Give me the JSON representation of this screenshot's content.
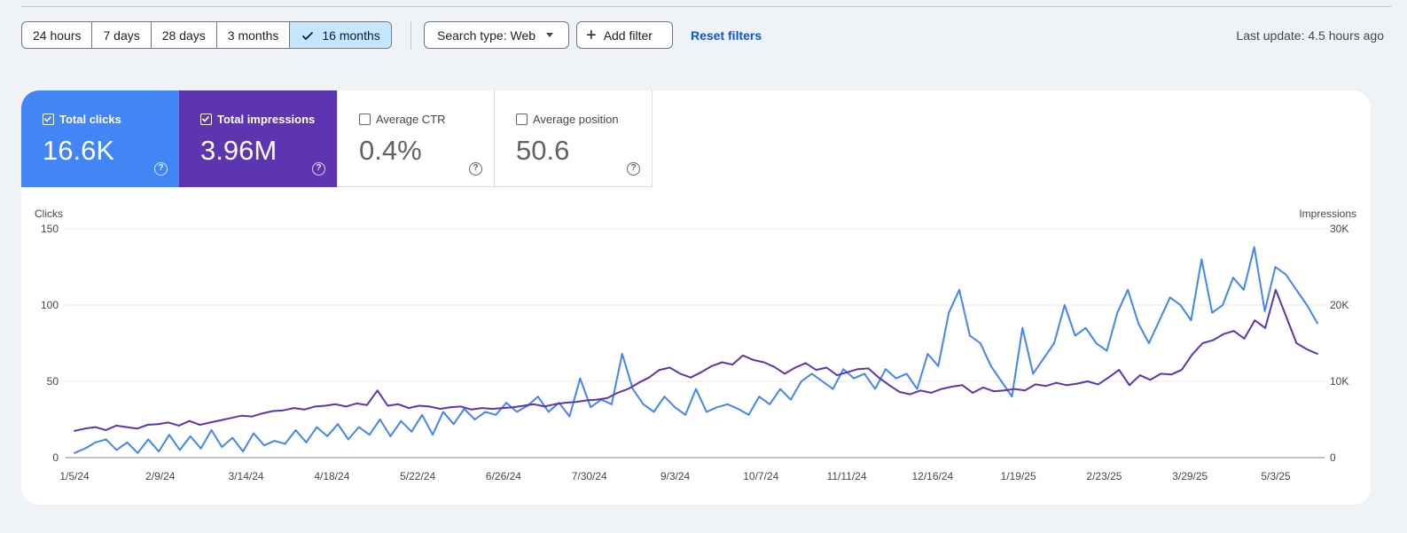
{
  "toolbar": {
    "ranges": [
      "24 hours",
      "7 days",
      "28 days",
      "3 months",
      "16 months"
    ],
    "selected_range": "16 months",
    "search_type_label": "Search type: Web",
    "add_filter_label": "Add filter",
    "reset_label": "Reset filters",
    "last_update": "Last update: 4.5 hours ago"
  },
  "metrics": [
    {
      "label": "Total clicks",
      "value": "16.6K",
      "checked": true,
      "color": "#4285f4"
    },
    {
      "label": "Total impressions",
      "value": "3.96M",
      "checked": true,
      "color": "#5e35b1"
    },
    {
      "label": "Average CTR",
      "value": "0.4%",
      "checked": false
    },
    {
      "label": "Average position",
      "value": "50.6",
      "checked": false
    }
  ],
  "help_glyph": "?",
  "chart_data": {
    "type": "line",
    "left_axis": {
      "label": "Clicks",
      "range": [
        0,
        150
      ],
      "ticks": [
        "0",
        "50",
        "100",
        "150"
      ]
    },
    "right_axis": {
      "label": "Impressions",
      "range": [
        0,
        30000
      ],
      "ticks": [
        "0",
        "10K",
        "20K",
        "30K"
      ]
    },
    "x_ticks": [
      "1/5/24",
      "2/9/24",
      "3/14/24",
      "4/18/24",
      "5/22/24",
      "6/26/24",
      "7/30/24",
      "9/3/24",
      "10/7/24",
      "11/11/24",
      "12/16/24",
      "1/19/25",
      "2/23/25",
      "3/29/25",
      "5/3/25"
    ],
    "grid": true,
    "legend": "none",
    "series": [
      {
        "name": "Clicks",
        "axis": "left",
        "color": "#4285f4",
        "values": [
          3,
          6,
          10,
          12,
          5,
          10,
          3,
          12,
          4,
          15,
          5,
          14,
          6,
          18,
          7,
          13,
          4,
          16,
          8,
          11,
          9,
          18,
          10,
          20,
          14,
          22,
          12,
          20,
          15,
          25,
          14,
          24,
          17,
          28,
          15,
          30,
          22,
          32,
          25,
          30,
          28,
          36,
          30,
          34,
          40,
          30,
          36,
          27,
          52,
          33,
          38,
          35,
          68,
          45,
          35,
          30,
          40,
          33,
          28,
          45,
          30,
          33,
          35,
          32,
          28,
          40,
          35,
          45,
          38,
          50,
          55,
          50,
          45,
          58,
          52,
          55,
          45,
          58,
          52,
          55,
          45,
          68,
          60,
          95,
          110,
          80,
          75,
          60,
          50,
          40,
          85,
          55,
          65,
          75,
          100,
          80,
          85,
          75,
          70,
          95,
          110,
          88,
          75,
          90,
          105,
          100,
          90,
          130,
          95,
          100,
          118,
          110,
          138,
          96,
          125,
          120,
          110,
          100,
          88
        ]
      },
      {
        "name": "Impressions",
        "axis": "right",
        "color": "#5e35b1",
        "values": [
          3500,
          3800,
          4000,
          3600,
          4200,
          4000,
          3800,
          4300,
          4400,
          4600,
          4200,
          4800,
          4300,
          4600,
          4900,
          5200,
          5500,
          5400,
          5800,
          6100,
          6200,
          6500,
          6300,
          6700,
          6800,
          7000,
          6700,
          7100,
          6900,
          8800,
          6800,
          7000,
          6500,
          6800,
          6700,
          6400,
          6600,
          6700,
          6300,
          6500,
          6400,
          6500,
          6600,
          6800,
          7000,
          6700,
          7000,
          7200,
          7300,
          7500,
          7600,
          7800,
          8500,
          9000,
          9800,
          10500,
          11500,
          11800,
          11000,
          10500,
          11200,
          12000,
          12500,
          12200,
          13400,
          12800,
          12500,
          11900,
          11000,
          11800,
          12400,
          11500,
          11800,
          10800,
          11200,
          11600,
          11700,
          10500,
          9500,
          8600,
          8300,
          8800,
          8500,
          9000,
          9300,
          9500,
          8500,
          9200,
          8700,
          8800,
          9000,
          8800,
          9600,
          9400,
          9800,
          9500,
          9700,
          10000,
          9600,
          10500,
          11500,
          9500,
          10800,
          10200,
          11000,
          10900,
          11500,
          13500,
          15000,
          15400,
          16200,
          16600,
          15600,
          18000,
          17000,
          22000,
          18500,
          15000,
          14200,
          13600
        ]
      }
    ]
  }
}
